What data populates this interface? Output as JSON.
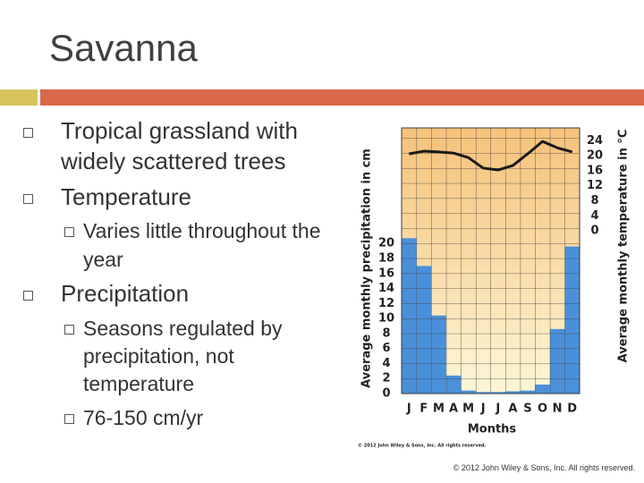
{
  "slide": {
    "title": "Savanna",
    "bullets": [
      {
        "text": "Tropical grassland with widely scattered trees",
        "level": 1
      },
      {
        "text": "Temperature",
        "level": 1
      },
      {
        "text": "Varies little throughout the year",
        "level": 2
      },
      {
        "text": "Precipitation",
        "level": 1
      },
      {
        "text": "Seasons regulated by precipitation, not temperature",
        "level": 2
      },
      {
        "text": "76-150 cm/yr",
        "level": 2
      }
    ],
    "footer": "© 2012 John Wiley & Sons, Inc. All rights reserved."
  },
  "chart_data": {
    "type": "bar_line",
    "categories": [
      "J",
      "F",
      "M",
      "A",
      "M",
      "J",
      "J",
      "A",
      "S",
      "O",
      "N",
      "D"
    ],
    "x_label": "Months",
    "y_label": "Average monthly precipitation in cm",
    "y2_label": "Average monthly temperature in °C",
    "credit": "© 2012 John Wiley & Sons, Inc. All rights reserved.",
    "series": [
      {
        "color": "#4a90d9",
        "values": [
          20.7,
          17,
          10.4,
          2.4,
          0.4,
          0.2,
          0.2,
          0.3,
          0.4,
          1.2,
          8.6,
          19.6
        ]
      },
      {
        "color": "#1a1a1a",
        "axis": "y2",
        "values": [
          20.5,
          21.2,
          21,
          20.7,
          19.5,
          16.7,
          16.2,
          17.4,
          20.5,
          23.8,
          22.1,
          21
        ]
      }
    ],
    "ylim": [
      0,
      35.4
    ],
    "yticks": [
      0,
      2,
      4,
      6,
      8,
      10,
      12,
      14,
      16,
      18,
      20
    ],
    "y2lim": [
      -43.3,
      27.4
    ],
    "y2ticks": [
      0,
      4,
      8,
      12,
      16,
      20,
      24
    ]
  }
}
